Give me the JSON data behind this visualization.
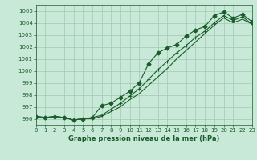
{
  "xlabel": "Graphe pression niveau de la mer (hPa)",
  "xlim": [
    0,
    23
  ],
  "ylim": [
    995.5,
    1005.5
  ],
  "yticks": [
    996,
    997,
    998,
    999,
    1000,
    1001,
    1002,
    1003,
    1004,
    1005
  ],
  "xticks": [
    0,
    1,
    2,
    3,
    4,
    5,
    6,
    7,
    8,
    9,
    10,
    11,
    12,
    13,
    14,
    15,
    16,
    17,
    18,
    19,
    20,
    21,
    22,
    23
  ],
  "background_color": "#c8e8d8",
  "grid_color": "#a0c8b0",
  "line_color": "#1a5c2a",
  "series1_y": [
    996.2,
    996.1,
    996.2,
    996.1,
    995.9,
    996.0,
    996.1,
    996.3,
    996.8,
    997.3,
    997.9,
    998.5,
    999.3,
    1000.1,
    1000.8,
    1001.5,
    1002.1,
    1002.8,
    1003.3,
    1004.0,
    1004.6,
    1004.2,
    1004.5,
    1003.9
  ],
  "series2_y": [
    996.2,
    996.1,
    996.2,
    996.1,
    995.9,
    996.0,
    996.1,
    997.1,
    997.3,
    997.8,
    998.3,
    999.0,
    1000.6,
    1001.5,
    1001.9,
    1002.2,
    1002.9,
    1003.4,
    1003.7,
    1004.6,
    1004.9,
    1004.4,
    1004.7,
    1004.1
  ],
  "series3_y": [
    996.2,
    996.1,
    996.2,
    996.1,
    995.9,
    996.0,
    996.0,
    996.2,
    996.6,
    997.0,
    997.6,
    998.1,
    998.8,
    999.5,
    1000.2,
    1001.0,
    1001.7,
    1002.4,
    1003.1,
    1003.8,
    1004.4,
    1004.0,
    1004.3,
    1003.9
  ],
  "font_color": "#1a5c2a",
  "marker_size": 2.5,
  "linewidth": 0.8
}
